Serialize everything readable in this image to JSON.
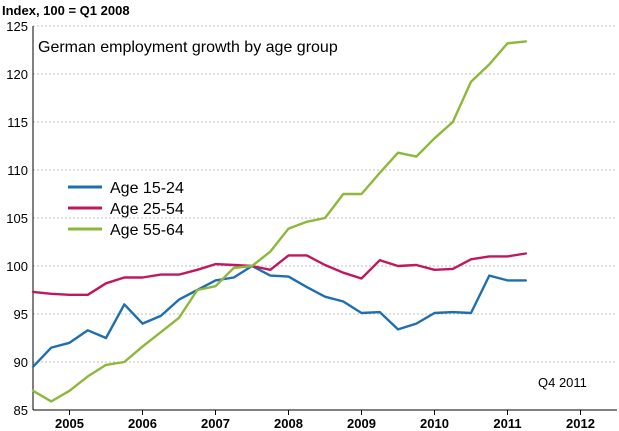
{
  "chart_data": {
    "type": "line",
    "title": "German employment growth by age group",
    "ylabel": "Index, 100 = Q1 2008",
    "note": "Q4 2011",
    "ylim": [
      85,
      125
    ],
    "yticks": [
      85,
      90,
      95,
      100,
      105,
      110,
      115,
      120,
      125
    ],
    "xlim": [
      2004.5,
      2012.5
    ],
    "xtick_labels": [
      "2005",
      "2006",
      "2007",
      "2008",
      "2009",
      "2010",
      "2011",
      "2012"
    ],
    "grid": true,
    "legend_position": "left-middle",
    "x": [
      2004.5,
      2004.75,
      2005.0,
      2005.25,
      2005.5,
      2005.75,
      2006.0,
      2006.25,
      2006.5,
      2006.75,
      2007.0,
      2007.25,
      2007.5,
      2007.75,
      2008.0,
      2008.25,
      2008.5,
      2008.75,
      2009.0,
      2009.25,
      2009.5,
      2009.75,
      2010.0,
      2010.25,
      2010.5,
      2010.75,
      2011.0,
      2011.25,
      2011.5
    ],
    "series": [
      {
        "name": "Age 15-24",
        "color": "#1f6fb0",
        "values": [
          89.5,
          91.5,
          92.0,
          93.3,
          92.5,
          96.0,
          94.0,
          94.8,
          96.5,
          97.5,
          98.5,
          98.8,
          100.0,
          99.0,
          98.9,
          97.8,
          96.8,
          96.3,
          95.1,
          95.2,
          93.4,
          94.0,
          95.1,
          95.2,
          95.1,
          99.0,
          98.5,
          98.5,
          null
        ]
      },
      {
        "name": "Age 25-54",
        "color": "#c0185e",
        "values": [
          97.3,
          97.1,
          97.0,
          97.0,
          98.2,
          98.8,
          98.8,
          99.1,
          99.1,
          99.6,
          100.2,
          100.1,
          100.0,
          99.6,
          101.1,
          101.1,
          100.1,
          99.3,
          98.7,
          100.6,
          100.0,
          100.1,
          99.6,
          99.7,
          100.7,
          101.0,
          101.0,
          101.3,
          null
        ]
      },
      {
        "name": "Age 55-64",
        "color": "#8db83a",
        "values": [
          87.0,
          85.9,
          87.0,
          88.5,
          89.7,
          90.0,
          91.6,
          93.1,
          94.6,
          97.5,
          97.9,
          99.8,
          100.0,
          101.5,
          103.9,
          104.6,
          105.0,
          107.5,
          107.5,
          109.7,
          111.8,
          111.4,
          113.3,
          115.0,
          119.2,
          121.0,
          123.2,
          123.4,
          null
        ]
      }
    ]
  }
}
